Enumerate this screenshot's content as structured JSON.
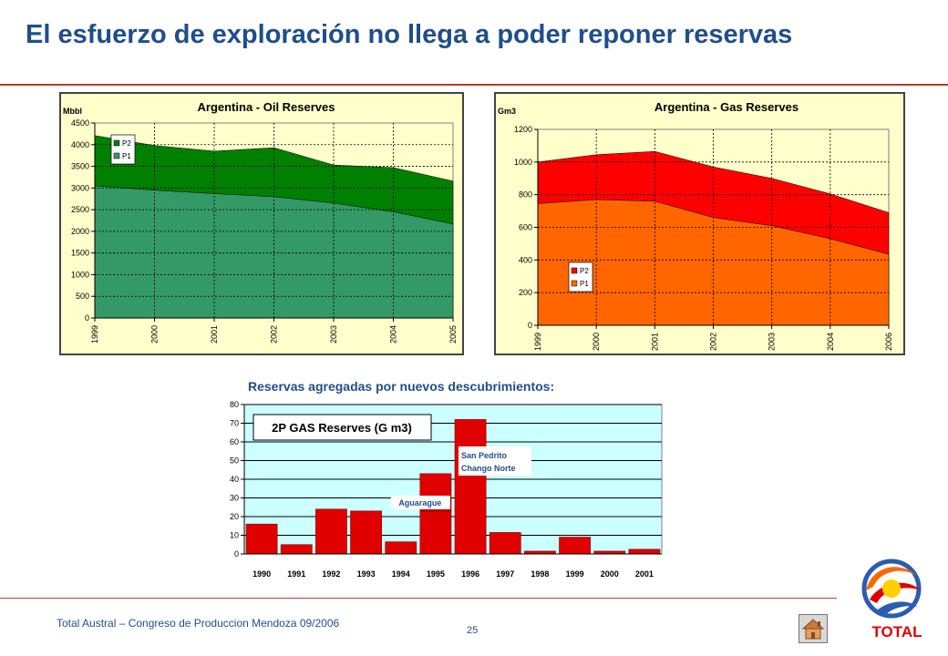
{
  "page": {
    "title": "El esfuerzo de exploración no llega a poder reponer reservas",
    "subtitle": "Reservas agregadas por nuevos descubrimientos:",
    "footer": "Total Austral – Congreso de Produccion Mendoza 09/2006",
    "page_number": "25",
    "logo_text": "TOTAL"
  },
  "chart_data": [
    {
      "type": "area",
      "title": "Argentina - Oil Reserves",
      "ylabel": "Mbbl",
      "xlabel": "",
      "x": [
        "1999",
        "2000",
        "2001",
        "2002",
        "2003",
        "2004",
        "2005"
      ],
      "ylim": [
        0,
        4500
      ],
      "yticks": [
        0,
        500,
        1000,
        1500,
        2000,
        2500,
        3000,
        3500,
        4000,
        4500
      ],
      "grid": "dotted",
      "legend": "top-left",
      "stacked": true,
      "series": [
        {
          "name": "P1",
          "values": [
            3050,
            2950,
            2870,
            2800,
            2650,
            2450,
            2170
          ],
          "color": "#339966"
        },
        {
          "name": "P2",
          "values": [
            1160,
            1030,
            980,
            1130,
            880,
            1020,
            990
          ],
          "color": "#008000"
        }
      ]
    },
    {
      "type": "area",
      "title": "Argentina - Gas Reserves",
      "ylabel": "Gm3",
      "xlabel": "",
      "x": [
        "1999",
        "2000",
        "2001",
        "2002",
        "2003",
        "2004",
        "2006"
      ],
      "ylim": [
        0,
        1200
      ],
      "yticks": [
        0,
        200,
        400,
        600,
        800,
        1000,
        1200
      ],
      "grid": "dotted",
      "legend": "bottom-left",
      "stacked": true,
      "series": [
        {
          "name": "P1",
          "values": [
            745,
            770,
            760,
            660,
            610,
            530,
            435
          ],
          "color": "#ff6600"
        },
        {
          "name": "P2",
          "values": [
            255,
            275,
            305,
            310,
            290,
            275,
            255
          ],
          "color": "#ff0000"
        }
      ]
    },
    {
      "type": "bar",
      "title": "2P GAS Reserves (G m3)",
      "xlabel": "",
      "ylabel": "",
      "categories": [
        "1990",
        "1991",
        "1992",
        "1993",
        "1994",
        "1995",
        "1996",
        "1997",
        "1998",
        "1999",
        "2000",
        "2001"
      ],
      "values": [
        16,
        5,
        24,
        23,
        6.5,
        43,
        72,
        11.5,
        1.5,
        9,
        1.5,
        2.5
      ],
      "ylim": [
        0,
        80
      ],
      "yticks": [
        0,
        10,
        20,
        30,
        40,
        50,
        60,
        70,
        80
      ],
      "grid": "horizontal",
      "color": "#e00000",
      "annotations": [
        {
          "category": "1995",
          "lines": [
            "Aguarague"
          ],
          "split_at": 23
        },
        {
          "category": "1996",
          "lines": [
            "San Pedrito",
            "Chango Norte"
          ]
        }
      ]
    }
  ]
}
